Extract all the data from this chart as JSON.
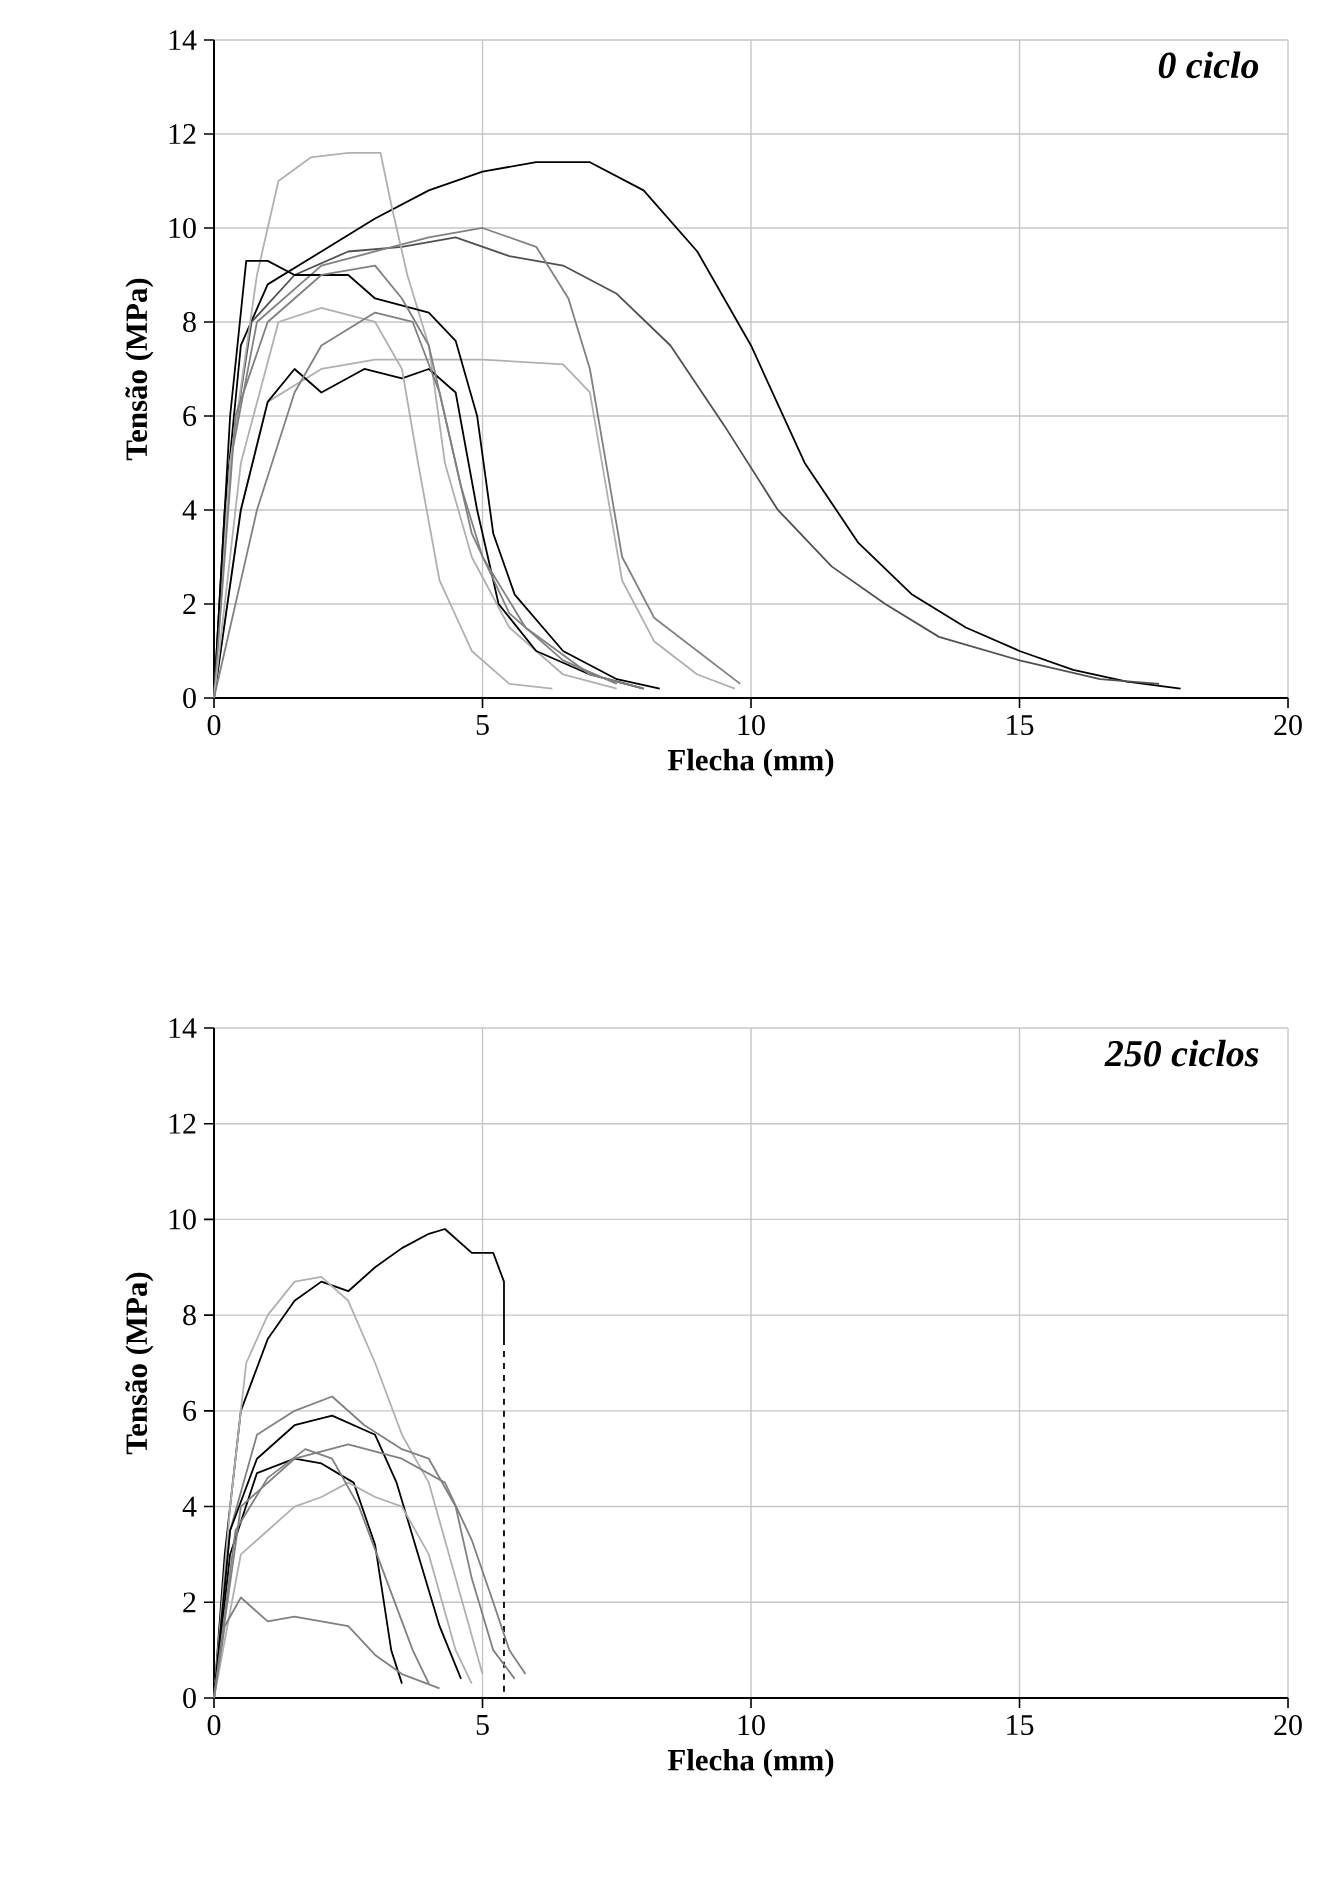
{
  "chart_data": [
    {
      "type": "line",
      "title": "0 ciclo",
      "xlabel": "Flecha (mm)",
      "ylabel": "Tensão (MPa)",
      "xlim": [
        0,
        20
      ],
      "ylim": [
        0,
        14
      ],
      "xticks": [
        0,
        5,
        10,
        15,
        20
      ],
      "yticks": [
        0,
        2,
        4,
        6,
        8,
        10,
        12,
        14
      ],
      "grid": true,
      "series": [
        {
          "color": "#000000",
          "x": [
            0,
            0.2,
            0.5,
            1,
            2,
            3,
            4,
            5,
            6,
            7,
            8,
            9,
            10,
            11,
            12,
            13,
            14,
            15,
            16,
            17,
            18
          ],
          "values": [
            0,
            4,
            7.5,
            8.8,
            9.5,
            10.2,
            10.8,
            11.2,
            11.4,
            11.4,
            10.8,
            9.5,
            7.5,
            5,
            3.3,
            2.2,
            1.5,
            1,
            0.6,
            0.35,
            0.2
          ]
        },
        {
          "color": "#505050",
          "x": [
            0,
            0.3,
            0.7,
            1.5,
            2.5,
            3.5,
            4.5,
            5.5,
            6.5,
            7.5,
            8.5,
            9.5,
            10.5,
            11.5,
            12.5,
            13.5,
            15,
            16.5,
            17.6
          ],
          "values": [
            0,
            5,
            8,
            9,
            9.5,
            9.6,
            9.8,
            9.4,
            9.2,
            8.6,
            7.5,
            5.8,
            4,
            2.8,
            2,
            1.3,
            0.8,
            0.4,
            0.3
          ]
        },
        {
          "color": "#808080",
          "x": [
            0,
            0.3,
            0.8,
            2,
            3,
            4,
            5,
            6,
            6.6,
            7,
            7.3,
            7.6,
            8.2,
            9,
            9.8
          ],
          "values": [
            0,
            5,
            8,
            9.2,
            9.5,
            9.8,
            10,
            9.6,
            8.5,
            7,
            5,
            3,
            1.7,
            1,
            0.3
          ]
        },
        {
          "color": "#b0b0b0",
          "x": [
            0,
            0.5,
            1,
            2,
            3,
            5,
            6.5,
            7,
            7.3,
            7.6,
            8.2,
            9,
            9.7
          ],
          "values": [
            0,
            4,
            6.3,
            7,
            7.2,
            7.2,
            7.1,
            6.5,
            4.5,
            2.5,
            1.2,
            0.5,
            0.2
          ]
        },
        {
          "color": "#b0b0b0",
          "x": [
            0,
            0.3,
            0.8,
            1.2,
            1.8,
            2.5,
            3.1,
            3.3,
            3.6,
            4,
            4.3,
            4.8,
            5.5,
            6.5,
            7.5
          ],
          "values": [
            0,
            5,
            9,
            11,
            11.5,
            11.6,
            11.6,
            10.5,
            9,
            7.5,
            5,
            3,
            1.5,
            0.5,
            0.2
          ]
        },
        {
          "color": "#000000",
          "x": [
            0,
            0.5,
            1,
            1.5,
            2,
            2.8,
            3.5,
            4,
            4.5,
            4.9,
            5.3,
            6,
            7,
            8
          ],
          "values": [
            0,
            4,
            6.3,
            7,
            6.5,
            7,
            6.8,
            7,
            6.5,
            4,
            2,
            1,
            0.5,
            0.2
          ]
        },
        {
          "color": "#000000",
          "x": [
            0,
            0.3,
            0.6,
            1,
            1.5,
            2.5,
            3,
            4,
            4.5,
            4.9,
            5.2,
            5.6,
            6.5,
            7.5,
            8.3
          ],
          "values": [
            0,
            6,
            9.3,
            9.3,
            9,
            9,
            8.5,
            8.2,
            7.6,
            6,
            3.5,
            2.2,
            1,
            0.4,
            0.2
          ]
        },
        {
          "color": "#808080",
          "x": [
            0,
            0.4,
            1,
            2,
            3,
            3.5,
            4,
            4.4,
            4.8,
            5.5,
            6.5,
            7.5
          ],
          "values": [
            0,
            6,
            8,
            9,
            9.2,
            8.5,
            7.5,
            5.5,
            3.5,
            1.8,
            0.8,
            0.3
          ]
        },
        {
          "color": "#b0b0b0",
          "x": [
            0,
            0.5,
            1.2,
            2,
            3,
            3.5,
            3.8,
            4.2,
            4.8,
            5.5,
            6.3
          ],
          "values": [
            0,
            5,
            8,
            8.3,
            8,
            7,
            5,
            2.5,
            1,
            0.3,
            0.2
          ]
        },
        {
          "color": "#808080",
          "x": [
            0,
            0.8,
            1.5,
            2,
            3,
            3.7,
            4.2,
            4.6,
            5,
            5.8,
            7,
            8
          ],
          "values": [
            0,
            4,
            6.5,
            7.5,
            8.2,
            8,
            6.5,
            4.5,
            3,
            1.5,
            0.5,
            0.2
          ]
        }
      ]
    },
    {
      "type": "line",
      "title": "250 ciclos",
      "xlabel": "Flecha (mm)",
      "ylabel": "Tensão (MPa)",
      "xlim": [
        0,
        20
      ],
      "ylim": [
        0,
        14
      ],
      "xticks": [
        0,
        5,
        10,
        15,
        20
      ],
      "yticks": [
        0,
        2,
        4,
        6,
        8,
        10,
        12,
        14
      ],
      "grid": true,
      "series": [
        {
          "color": "#000000",
          "x": [
            0,
            0.2,
            0.5,
            1,
            1.5,
            2,
            2.5,
            3,
            3.5,
            4,
            4.3,
            4.8,
            5.2,
            5.4,
            5.4
          ],
          "values": [
            0,
            3,
            6,
            7.5,
            8.3,
            8.7,
            8.5,
            9,
            9.4,
            9.7,
            9.8,
            9.3,
            9.3,
            8.7,
            7.5
          ]
        },
        {
          "color": "#000000",
          "line_style": "dashed",
          "x": [
            5.4,
            5.4
          ],
          "values": [
            7.5,
            0
          ]
        },
        {
          "color": "#b0b0b0",
          "x": [
            0,
            0.3,
            0.6,
            1,
            1.5,
            2,
            2.5,
            3,
            3.5,
            4,
            4.5,
            5
          ],
          "values": [
            0,
            4,
            7,
            8,
            8.7,
            8.8,
            8.3,
            7,
            5.5,
            4.5,
            2.5,
            0.5
          ]
        },
        {
          "color": "#808080",
          "x": [
            0,
            0.3,
            0.8,
            1.5,
            2.2,
            2.8,
            3.5,
            4,
            4.5,
            4.8,
            5.2,
            5.6
          ],
          "values": [
            0,
            3.5,
            5.5,
            6,
            6.3,
            5.7,
            5.2,
            5,
            4,
            2.5,
            1,
            0.4
          ]
        },
        {
          "color": "#000000",
          "x": [
            0,
            0.3,
            0.8,
            1.5,
            2.2,
            3,
            3.4,
            3.8,
            4.2,
            4.6
          ],
          "values": [
            0,
            3.5,
            5,
            5.7,
            5.9,
            5.5,
            4.5,
            3,
            1.5,
            0.4
          ]
        },
        {
          "color": "#000000",
          "x": [
            0,
            0.3,
            0.8,
            1.5,
            2,
            2.6,
            3,
            3.3,
            3.5
          ],
          "values": [
            0,
            3,
            4.7,
            5,
            4.9,
            4.5,
            3.2,
            1,
            0.3
          ]
        },
        {
          "color": "#808080",
          "x": [
            0,
            0.5,
            1.5,
            2.5,
            3.5,
            4.3,
            4.8,
            5.2,
            5.5,
            5.8
          ],
          "values": [
            0,
            4,
            5,
            5.3,
            5,
            4.5,
            3.3,
            2,
            1,
            0.5
          ]
        },
        {
          "color": "#b0b0b0",
          "x": [
            0,
            0.5,
            1,
            1.5,
            2,
            2.5,
            3,
            3.5,
            4,
            4.5,
            4.8
          ],
          "values": [
            0,
            3,
            3.5,
            4,
            4.2,
            4.5,
            4.2,
            4,
            3,
            1,
            0.3
          ]
        },
        {
          "color": "#808080",
          "x": [
            0,
            0.2,
            0.5,
            1,
            1.5,
            2,
            2.5,
            3,
            3.5,
            4.2
          ],
          "values": [
            0,
            1.5,
            2.1,
            1.6,
            1.7,
            1.6,
            1.5,
            0.9,
            0.5,
            0.2
          ]
        },
        {
          "color": "#808080",
          "x": [
            0,
            0.4,
            1,
            1.7,
            2.2,
            2.7,
            3.2,
            3.7,
            4
          ],
          "values": [
            0,
            3.5,
            4.6,
            5.2,
            5,
            4,
            2.5,
            1,
            0.3
          ]
        }
      ]
    }
  ]
}
